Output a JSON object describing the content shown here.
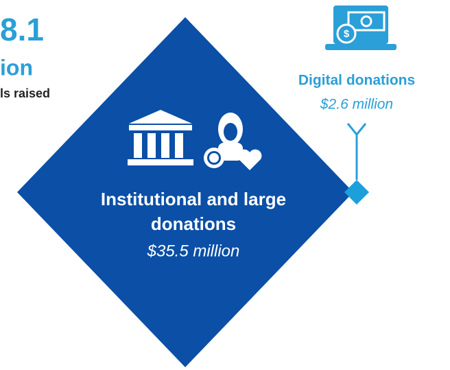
{
  "header": {
    "amount": "8.1",
    "unit": "ion",
    "caption": "ls raised"
  },
  "diamond": {
    "title_lines": [
      "Institutional and large",
      "donations"
    ],
    "amount": "$35.5 million"
  },
  "callout": {
    "title": "Digital donations",
    "amount": "$2.6 million"
  }
}
